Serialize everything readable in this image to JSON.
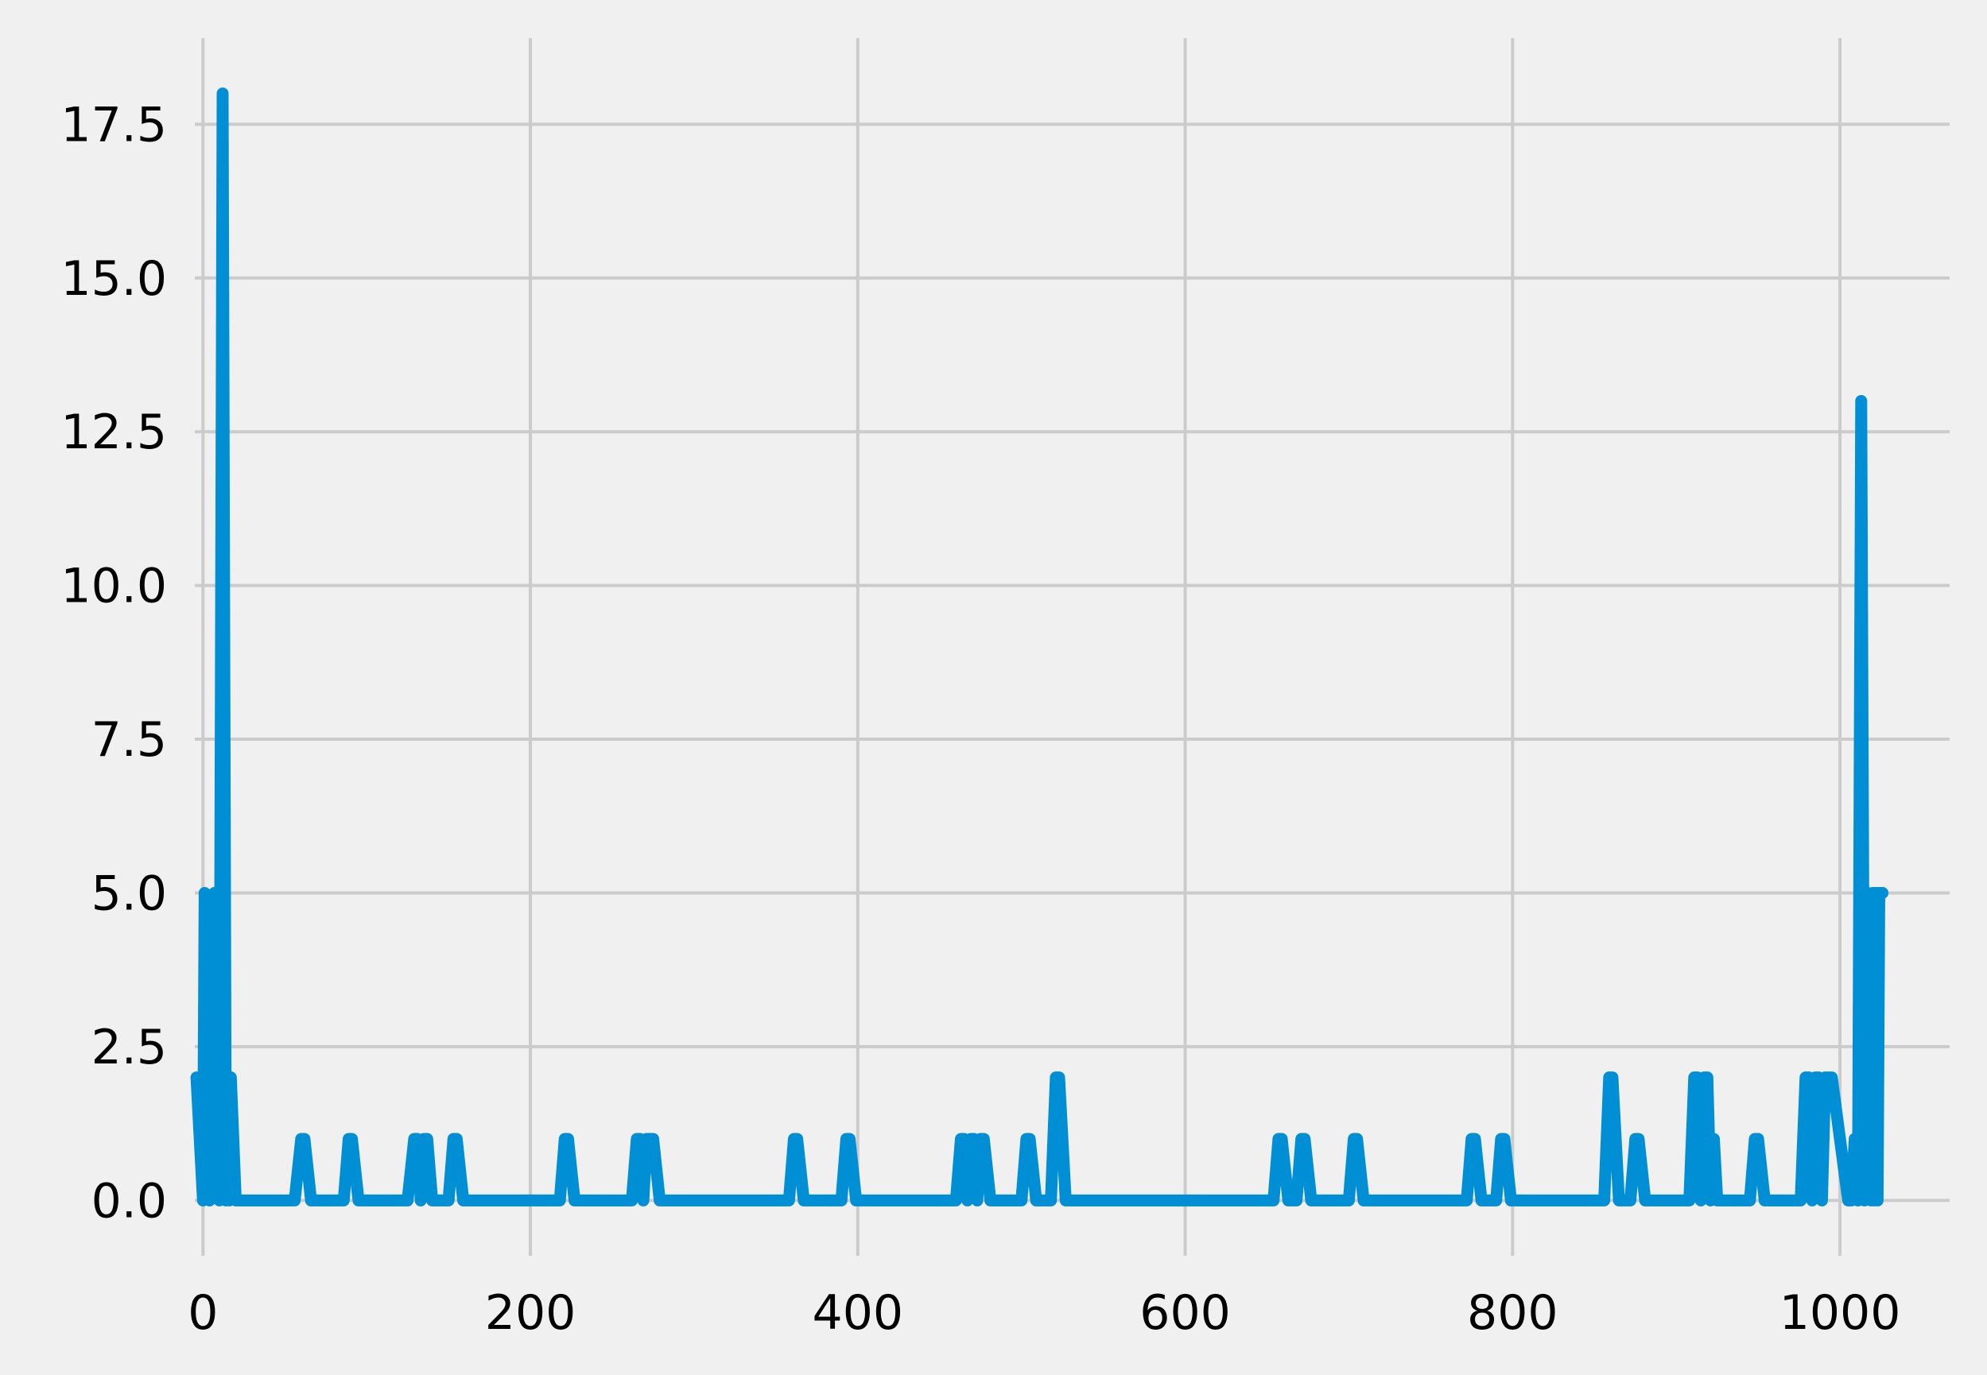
{
  "chart_data": {
    "type": "line",
    "title": "",
    "xlabel": "",
    "ylabel": "",
    "xlim": [
      -5,
      1067
    ],
    "ylim": [
      -0.9,
      18.9
    ],
    "grid": true,
    "style": "fivethirtyeight",
    "background_color": "#f0f0f0",
    "grid_color": "#cbcbcb",
    "x_ticks": [
      0,
      200,
      400,
      600,
      800,
      1000
    ],
    "x_tick_labels": [
      "0",
      "200",
      "400",
      "600",
      "800",
      "1000"
    ],
    "y_ticks": [
      0,
      2.5,
      5,
      7.5,
      10,
      12.5,
      15,
      17.5
    ],
    "y_tick_labels": [
      "0.0",
      "2.5",
      "5.0",
      "7.5",
      "10.0",
      "12.5",
      "15.0",
      "17.5"
    ],
    "series": [
      {
        "color": "#008fd5",
        "x": [
          -4,
          0,
          1,
          4,
          7,
          10,
          12,
          14,
          15,
          16,
          17,
          20,
          56,
          60,
          62,
          66,
          86,
          89,
          91,
          95,
          125,
          129,
          131,
          133,
          135,
          137,
          140,
          150,
          153,
          155,
          159,
          218,
          221,
          223,
          227,
          262,
          265,
          267,
          269,
          271,
          273,
          275,
          279,
          358,
          361,
          363,
          367,
          390,
          393,
          395,
          399,
          460,
          463,
          465,
          467,
          469,
          471,
          473,
          475,
          477,
          481,
          500,
          503,
          505,
          509,
          518,
          521,
          523,
          527,
          654,
          657,
          659,
          663,
          668,
          671,
          673,
          677,
          700,
          703,
          705,
          709,
          772,
          775,
          777,
          781,
          790,
          793,
          795,
          799,
          856,
          859,
          861,
          865,
          872,
          875,
          877,
          881,
          908,
          911,
          913,
          915,
          917,
          919,
          921,
          923,
          925,
          929,
          945,
          948,
          950,
          954,
          976,
          979,
          981,
          983,
          985,
          987,
          989,
          991,
          995,
          1005,
          1007,
          1009,
          1011,
          1013,
          1015,
          1017,
          1019,
          1020,
          1021,
          1022,
          1023,
          1024,
          1026
        ],
        "y": [
          2,
          0,
          5,
          0,
          5,
          0,
          18,
          0,
          2,
          0,
          2,
          0,
          0,
          1,
          1,
          0,
          0,
          1,
          1,
          0,
          0,
          1,
          1,
          0,
          1,
          1,
          0,
          0,
          1,
          1,
          0,
          0,
          1,
          1,
          0,
          0,
          1,
          1,
          0,
          1,
          1,
          1,
          0,
          0,
          1,
          1,
          0,
          0,
          1,
          1,
          0,
          0,
          1,
          1,
          0,
          1,
          1,
          0,
          1,
          1,
          0,
          0,
          1,
          1,
          0,
          0,
          2,
          2,
          0,
          0,
          1,
          1,
          0,
          0,
          1,
          1,
          0,
          0,
          1,
          1,
          0,
          0,
          1,
          1,
          0,
          0,
          1,
          1,
          0,
          0,
          2,
          2,
          0,
          0,
          1,
          1,
          0,
          0,
          2,
          2,
          0,
          2,
          2,
          0,
          1,
          0,
          0,
          0,
          1,
          1,
          0,
          0,
          2,
          2,
          0,
          2,
          2,
          0,
          2,
          2,
          0,
          0,
          1,
          0,
          13,
          0,
          5,
          0,
          5,
          0,
          5,
          0,
          5,
          5
        ]
      }
    ]
  }
}
